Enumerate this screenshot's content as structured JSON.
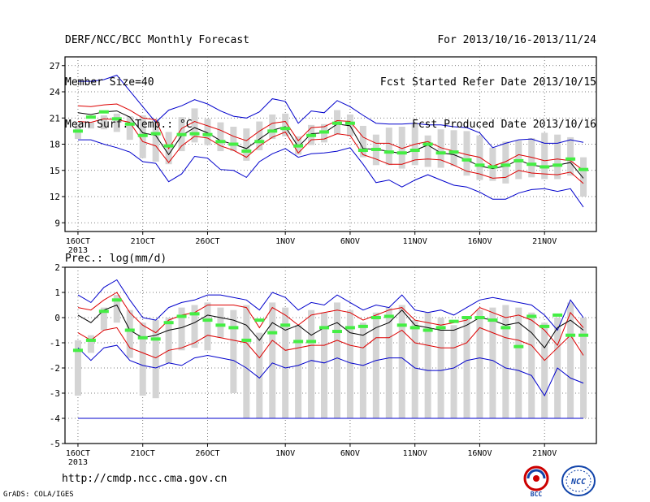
{
  "header": {
    "title": "DERF/NCC/BCC Monthly Forecast",
    "member_size": "Member Size=40",
    "variable": "Mean Surf. Temp.: °C",
    "period": "For 2013/10/16-2013/11/24",
    "start_date": "Fcst Started Refer Date 2013/10/15",
    "produced": "Fcst Produced Date 2013/10/16"
  },
  "footer": {
    "url": "http://cmdp.ncc.cma.gov.cn",
    "grads": "GrADS: COLA/IGES",
    "logo_left_text": "BCC",
    "logo_right_text": "NCC"
  },
  "colors": {
    "envelope": "#0000cc",
    "spread": "#dd0000",
    "mean": "#000000",
    "median": "#44ee44",
    "box": "#d4d4d4"
  },
  "chart_data": [
    {
      "type": "line",
      "title": "Mean Surf. Temp.: °C",
      "xlabel": "",
      "ylabel": "",
      "x_tick_labels": [
        "16OCT\n2013",
        "21OCT",
        "26OCT",
        "1NOV",
        "6NOV",
        "11NOV",
        "16NOV",
        "21NOV"
      ],
      "x_tick_days": [
        1,
        6,
        11,
        17,
        22,
        27,
        32,
        37
      ],
      "x_range": [
        0,
        41
      ],
      "ylim": [
        8,
        28
      ],
      "y_ticks": [
        9,
        12,
        15,
        18,
        21,
        24,
        27
      ],
      "x_days": [
        1,
        2,
        3,
        4,
        5,
        6,
        7,
        8,
        9,
        10,
        11,
        12,
        13,
        14,
        15,
        16,
        17,
        18,
        19,
        20,
        21,
        22,
        23,
        24,
        25,
        26,
        27,
        28,
        29,
        30,
        31,
        32,
        33,
        34,
        35,
        36,
        37,
        38,
        39,
        40
      ],
      "series": [
        {
          "role": "max",
          "values": [
            25.2,
            25.2,
            25.4,
            25.9,
            24.1,
            22.3,
            20.5,
            21.9,
            22.4,
            23.1,
            22.6,
            21.8,
            21.2,
            21.0,
            21.7,
            23.2,
            22.9,
            20.4,
            21.8,
            21.6,
            23.0,
            22.3,
            21.3,
            20.4,
            20.3,
            20.3,
            20.4,
            20.2,
            20.2,
            20.0,
            19.9,
            19.3,
            17.6,
            18.1,
            18.5,
            18.6,
            18.1,
            18.1,
            18.5,
            18.2
          ]
        },
        {
          "role": "upper",
          "values": [
            22.4,
            22.3,
            22.5,
            22.6,
            21.9,
            21.0,
            20.8,
            17.5,
            19.8,
            20.6,
            20.1,
            19.6,
            18.9,
            18.4,
            19.5,
            20.4,
            20.6,
            18.4,
            19.9,
            20.0,
            20.7,
            20.6,
            18.8,
            18.1,
            18.1,
            17.5,
            18.0,
            18.3,
            17.6,
            17.2,
            16.8,
            16.5,
            15.5,
            16.0,
            16.8,
            16.5,
            16.1,
            16.3,
            16.1,
            15.0
          ]
        },
        {
          "role": "mean",
          "values": [
            21.6,
            21.4,
            21.7,
            21.8,
            21.1,
            19.3,
            19.0,
            16.8,
            19.0,
            19.9,
            19.3,
            18.4,
            18.0,
            17.5,
            18.6,
            19.6,
            20.0,
            17.7,
            19.2,
            19.3,
            20.3,
            20.1,
            17.5,
            17.4,
            17.2,
            16.9,
            17.3,
            17.9,
            17.0,
            16.8,
            16.2,
            15.5,
            15.2,
            15.5,
            16.2,
            15.6,
            15.4,
            15.6,
            15.9,
            14.1
          ]
        },
        {
          "role": "lower",
          "values": [
            20.6,
            20.5,
            20.9,
            20.8,
            20.5,
            18.3,
            17.8,
            15.9,
            17.8,
            18.9,
            18.7,
            17.8,
            17.3,
            16.5,
            17.8,
            18.8,
            19.4,
            17.0,
            18.5,
            18.6,
            19.2,
            19.0,
            16.8,
            16.3,
            15.7,
            15.7,
            16.2,
            16.3,
            16.2,
            15.6,
            14.9,
            14.6,
            14.1,
            14.2,
            15.0,
            14.7,
            14.6,
            14.5,
            14.8,
            13.5
          ]
        },
        {
          "role": "min",
          "values": [
            18.5,
            18.5,
            18.0,
            17.6,
            17.1,
            16.0,
            15.8,
            13.7,
            14.6,
            16.6,
            16.4,
            15.1,
            15.0,
            14.2,
            16.0,
            16.9,
            17.5,
            16.5,
            16.9,
            17.0,
            17.2,
            17.6,
            15.7,
            13.6,
            13.9,
            13.1,
            13.9,
            14.5,
            13.9,
            13.3,
            13.1,
            12.5,
            11.7,
            11.7,
            12.4,
            12.8,
            12.9,
            12.6,
            12.9,
            10.8
          ]
        }
      ],
      "boxes": {
        "low": [
          18.6,
          19.8,
          19.7,
          19.4,
          18.5,
          16.4,
          16.0,
          15.7,
          17.2,
          18.2,
          17.9,
          17.2,
          17.2,
          16.1,
          17.3,
          18.6,
          18.9,
          16.8,
          17.9,
          18.2,
          19.1,
          18.9,
          16.5,
          15.6,
          15.6,
          15.2,
          15.6,
          15.4,
          15.3,
          15.5,
          14.4,
          13.9,
          13.8,
          13.5,
          14.0,
          14.2,
          14.0,
          14.0,
          14.4,
          12.0
        ],
        "high": [
          20.3,
          20.5,
          21.3,
          21.5,
          21.2,
          21.3,
          20.9,
          19.4,
          21.1,
          22.1,
          20.9,
          20.5,
          20.0,
          19.8,
          20.6,
          21.4,
          21.5,
          18.9,
          20.2,
          20.3,
          21.9,
          21.4,
          20.1,
          19.1,
          19.9,
          20.0,
          20.3,
          19.0,
          19.7,
          19.6,
          19.5,
          19.0,
          17.6,
          18.3,
          18.4,
          18.7,
          19.3,
          19.1,
          18.8,
          16.5
        ],
        "median": [
          19.5,
          21.1,
          21.7,
          20.9,
          20.3,
          19.0,
          19.2,
          17.8,
          19.1,
          19.2,
          19.1,
          18.3,
          18.0,
          17.2,
          18.3,
          19.5,
          19.8,
          17.8,
          19.0,
          19.4,
          20.4,
          20.4,
          17.3,
          17.4,
          17.1,
          17.0,
          17.3,
          18.0,
          17.0,
          17.1,
          16.2,
          15.6,
          15.4,
          15.6,
          16.1,
          15.7,
          15.4,
          15.6,
          16.3,
          15.1
        ]
      }
    },
    {
      "type": "line",
      "title": "Prec.: log(mm/d)",
      "xlabel": "",
      "ylabel": "",
      "x_tick_labels": [
        "16OCT\n2013",
        "21OCT",
        "26OCT",
        "1NOV",
        "6NOV",
        "11NOV",
        "16NOV",
        "21NOV"
      ],
      "x_tick_days": [
        1,
        6,
        11,
        17,
        22,
        27,
        32,
        37
      ],
      "x_range": [
        0,
        41
      ],
      "ylim": [
        -5,
        2
      ],
      "y_ticks": [
        -5,
        -4,
        -3,
        -2,
        -1,
        0,
        1,
        2
      ],
      "baseline": -4,
      "x_days": [
        1,
        2,
        3,
        4,
        5,
        6,
        7,
        8,
        9,
        10,
        11,
        12,
        13,
        14,
        15,
        16,
        17,
        18,
        19,
        20,
        21,
        22,
        23,
        24,
        25,
        26,
        27,
        28,
        29,
        30,
        31,
        32,
        33,
        34,
        35,
        36,
        37,
        38,
        39,
        40
      ],
      "series": [
        {
          "role": "max",
          "values": [
            0.9,
            0.6,
            1.2,
            1.5,
            0.7,
            0.0,
            -0.1,
            0.4,
            0.6,
            0.7,
            0.9,
            0.9,
            0.8,
            0.7,
            0.3,
            1.0,
            0.8,
            0.3,
            0.6,
            0.5,
            0.9,
            0.6,
            0.3,
            0.5,
            0.4,
            0.9,
            0.3,
            0.2,
            0.3,
            0.1,
            0.4,
            0.7,
            0.8,
            0.7,
            0.6,
            0.5,
            0.1,
            -0.5,
            0.7,
            0.0
          ]
        },
        {
          "role": "upper",
          "values": [
            0.4,
            0.3,
            0.7,
            1.0,
            0.2,
            -0.3,
            -0.6,
            -0.1,
            0.1,
            0.2,
            0.5,
            0.5,
            0.5,
            0.4,
            -0.4,
            0.4,
            0.1,
            -0.3,
            0.1,
            0.2,
            0.3,
            0.2,
            -0.1,
            0.1,
            0.3,
            0.4,
            -0.1,
            -0.2,
            -0.3,
            -0.2,
            -0.1,
            0.4,
            0.2,
            0.0,
            0.1,
            -0.1,
            -0.5,
            -1.1,
            0.2,
            -0.4
          ]
        },
        {
          "role": "mean",
          "values": [
            0.1,
            -0.2,
            0.3,
            0.5,
            -0.5,
            -0.8,
            -0.7,
            -0.5,
            -0.4,
            -0.2,
            0.1,
            0.0,
            -0.1,
            -0.3,
            -0.9,
            -0.2,
            -0.5,
            -0.3,
            -0.7,
            -0.4,
            -0.2,
            -0.6,
            -0.7,
            -0.4,
            -0.2,
            0.3,
            -0.3,
            -0.4,
            -0.5,
            -0.5,
            -0.3,
            0.0,
            -0.1,
            -0.3,
            -0.2,
            -0.6,
            -1.2,
            -0.4,
            -0.1,
            -0.5
          ]
        },
        {
          "role": "lower",
          "values": [
            -0.6,
            -0.9,
            -0.5,
            -0.4,
            -1.2,
            -1.4,
            -1.6,
            -1.3,
            -1.2,
            -1.0,
            -0.7,
            -0.8,
            -0.9,
            -1.0,
            -1.6,
            -0.9,
            -1.3,
            -1.2,
            -1.1,
            -1.1,
            -0.9,
            -1.1,
            -1.2,
            -0.8,
            -0.8,
            -0.5,
            -1.0,
            -1.1,
            -1.2,
            -1.2,
            -1.0,
            -0.4,
            -0.6,
            -0.8,
            -0.9,
            -1.1,
            -1.7,
            -1.2,
            -0.7,
            -1.5
          ]
        },
        {
          "role": "min",
          "values": [
            -1.2,
            -1.7,
            -1.2,
            -1.1,
            -1.7,
            -1.9,
            -2.0,
            -1.8,
            -1.9,
            -1.6,
            -1.5,
            -1.6,
            -1.7,
            -2.0,
            -2.4,
            -1.8,
            -2.0,
            -1.9,
            -1.7,
            -1.8,
            -1.6,
            -1.8,
            -1.9,
            -1.7,
            -1.6,
            -1.6,
            -2.0,
            -2.1,
            -2.1,
            -2.0,
            -1.7,
            -1.6,
            -1.7,
            -2.0,
            -2.1,
            -2.3,
            -3.1,
            -2.0,
            -2.4,
            -2.6
          ]
        }
      ],
      "boxes": {
        "low": [
          -3.1,
          -1.4,
          -0.5,
          -0.2,
          -1.6,
          -3.1,
          -3.2,
          -1.8,
          -1.3,
          -1.2,
          -1.3,
          -0.8,
          -3.0,
          -4.0,
          -4.0,
          -4.0,
          -4.0,
          -4.0,
          -4.0,
          -4.0,
          -4.0,
          -4.0,
          -4.0,
          -4.0,
          -4.0,
          -4.0,
          -4.0,
          -4.0,
          -4.0,
          -4.0,
          -4.0,
          -4.0,
          -4.0,
          -4.0,
          -4.0,
          -4.0,
          -4.0,
          -4.0,
          -4.0,
          -4.0
        ],
        "high": [
          -0.9,
          -0.7,
          0.4,
          0.9,
          0.3,
          -0.2,
          -0.1,
          0.0,
          0.4,
          0.5,
          0.6,
          0.4,
          0.3,
          0.5,
          -0.6,
          0.6,
          0.4,
          -0.3,
          0.3,
          0.2,
          0.6,
          0.3,
          -0.2,
          0.2,
          0.4,
          0.5,
          -0.1,
          0.2,
          0.0,
          -0.3,
          0.0,
          0.3,
          0.4,
          0.5,
          0.4,
          0.2,
          -0.2,
          0.0,
          0.6,
          0.0
        ],
        "median": [
          -1.3,
          -0.9,
          0.25,
          0.7,
          -0.5,
          -0.8,
          -0.85,
          -0.2,
          0.05,
          0.15,
          -0.1,
          -0.3,
          -0.4,
          -0.9,
          -0.1,
          -0.6,
          -0.3,
          -0.95,
          -0.95,
          -0.4,
          -0.55,
          -0.4,
          -0.35,
          0.0,
          0.05,
          -0.3,
          -0.4,
          -0.5,
          -0.4,
          -0.15,
          0.0,
          0.0,
          -0.1,
          -0.4,
          -1.15,
          0.05,
          -0.35,
          0.1,
          -0.7,
          -0.7
        ]
      }
    }
  ]
}
